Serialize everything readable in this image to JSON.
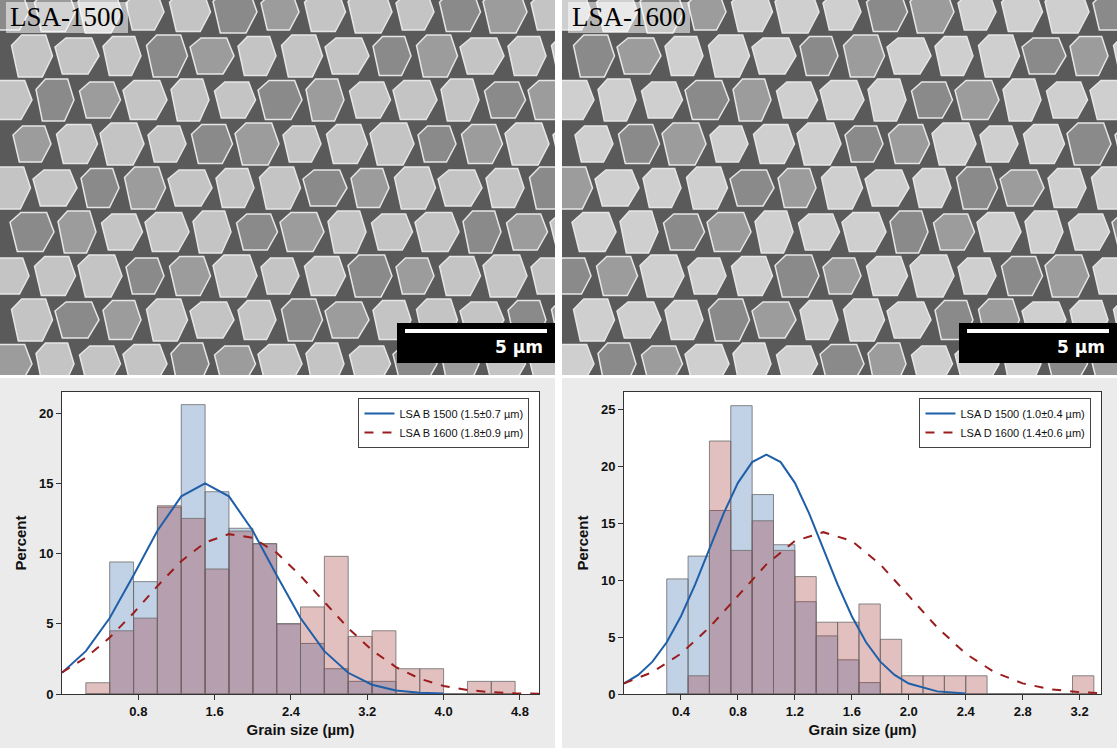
{
  "images": [
    {
      "label": "LSA-1500",
      "scale_bar": "5 µm"
    },
    {
      "label": "LSA-1600",
      "scale_bar": "5 µm"
    }
  ],
  "chart_data": [
    {
      "type": "histogram",
      "x_label": "Grain size (µm)",
      "y_label": "Percent",
      "xlim": [
        0,
        5.0
      ],
      "xticks": [
        0.8,
        1.6,
        2.4,
        3.2,
        {
          "value": 4,
          "label": "4.0"
        },
        4.8
      ],
      "ylim": [
        0,
        21.5
      ],
      "yticks": [
        0,
        5,
        10,
        15,
        20
      ],
      "grid": false,
      "legend": "top right",
      "series": [
        {
          "name": "LSA B 1500 (1.5±0.7 µm)",
          "color": "#1f5fa8",
          "line_style": "solid",
          "bins": [
            0.25,
            0.5,
            0.75,
            1.0,
            1.25,
            1.5,
            1.75,
            2.0,
            2.25,
            2.5,
            2.75,
            3.0,
            3.25,
            3.5,
            3.75,
            4.0,
            4.25,
            4.5,
            4.75
          ],
          "counts": [
            0,
            9.4,
            8.0,
            13.3,
            20.6,
            14.4,
            11.8,
            10.7,
            5.0,
            3.6,
            1.8,
            0.9,
            0.9,
            0,
            0,
            0,
            0,
            0
          ],
          "curve": {
            "x": [
              0,
              0.25,
              0.5,
              0.75,
              1.0,
              1.25,
              1.5,
              1.75,
              2.0,
              2.25,
              2.5,
              2.75,
              3.0,
              3.25,
              3.5,
              3.75,
              4.0
            ],
            "y": [
              1.51,
              3.05,
              5.41,
              8.45,
              11.62,
              14.07,
              15,
              14.07,
              11.62,
              8.45,
              5.41,
              3.05,
              1.51,
              0.66,
              0.25,
              0.09,
              0.03
            ]
          }
        },
        {
          "name": "LSA B 1600 (1.8±0.9 µm)",
          "color": "#9b1c1c",
          "line_style": "dashed",
          "bins": [
            0.25,
            0.5,
            0.75,
            1.0,
            1.25,
            1.5,
            1.75,
            2.0,
            2.25,
            2.5,
            2.75,
            3.0,
            3.25,
            3.5,
            3.75,
            4.0,
            4.25,
            4.5,
            4.75
          ],
          "counts": [
            0.8,
            4.5,
            5.4,
            13.4,
            12.5,
            8.9,
            11.6,
            10.7,
            5.0,
            6.2,
            9.8,
            4.1,
            4.5,
            1.8,
            1.8,
            0,
            0.9,
            0.9
          ],
          "curve": {
            "x": [
              0,
              0.25,
              0.5,
              0.75,
              1.0,
              1.25,
              1.5,
              1.75,
              2.0,
              2.25,
              2.5,
              2.75,
              3.0,
              3.25,
              3.5,
              3.75,
              4.0,
              4.25,
              4.5,
              4.75,
              5.0
            ],
            "y": [
              1.54,
              2.59,
              4.02,
              5.77,
              7.68,
              9.46,
              10.78,
              11.38,
              11.12,
              10.06,
              8.42,
              6.53,
              4.69,
              3.11,
              1.92,
              1.09,
              0.57,
              0.28,
              0.13,
              0.05,
              0.02
            ]
          }
        }
      ]
    },
    {
      "type": "histogram",
      "x_label": "Grain size (µm)",
      "y_label": "Percent",
      "xlim": [
        0,
        3.35
      ],
      "xticks": [
        0.4,
        0.8,
        1.2,
        1.6,
        {
          "value": 2,
          "label": "2.0"
        },
        2.4,
        2.8,
        3.2
      ],
      "ylim": [
        0,
        26.5
      ],
      "yticks": [
        0,
        5,
        10,
        15,
        20,
        25
      ],
      "grid": false,
      "legend": "top right",
      "series": [
        {
          "name": "LSA D 1500 (1.0±0.4 µm)",
          "color": "#1f5fa8",
          "line_style": "solid",
          "bins": [
            0.3,
            0.45,
            0.6,
            0.75,
            0.9,
            1.05,
            1.2,
            1.35,
            1.5,
            1.65,
            1.8,
            1.95,
            2.1,
            2.25,
            2.4,
            2.55,
            2.7,
            2.85,
            3.0,
            3.15,
            3.3
          ],
          "counts": [
            10.1,
            12.1,
            16.1,
            25.3,
            17.5,
            13.1,
            8.1,
            5.1,
            3.0,
            1.0,
            0,
            0,
            0,
            0,
            0,
            0,
            0,
            0,
            0,
            0
          ],
          "curve": {
            "x": [
              0,
              0.1,
              0.2,
              0.3,
              0.4,
              0.5,
              0.6,
              0.7,
              0.8,
              0.9,
              1.0,
              1.1,
              1.2,
              1.3,
              1.4,
              1.5,
              1.6,
              1.7,
              1.8,
              1.9,
              2.0,
              2.2,
              2.4
            ],
            "y": [
              0.92,
              1.67,
              2.84,
              4.54,
              6.82,
              9.61,
              12.74,
              15.85,
              18.53,
              20.35,
              21,
              20.35,
              18.53,
              15.85,
              12.74,
              9.61,
              6.82,
              4.54,
              2.84,
              1.67,
              0.92,
              0.23,
              0.05
            ]
          }
        },
        {
          "name": "LSA D 1600 (1.4±0.6 µm)",
          "color": "#9b1c1c",
          "line_style": "dashed",
          "bins": [
            0.3,
            0.45,
            0.6,
            0.75,
            0.9,
            1.05,
            1.2,
            1.35,
            1.5,
            1.65,
            1.8,
            1.95,
            2.1,
            2.25,
            2.4,
            2.55,
            2.7,
            2.85,
            3.0,
            3.15,
            3.3
          ],
          "counts": [
            0,
            1.6,
            22.2,
            12.6,
            15.2,
            12.6,
            10.3,
            6.3,
            6.3,
            7.9,
            4.8,
            1.6,
            1.6,
            1.6,
            1.6,
            0,
            0,
            0,
            0,
            1.6
          ],
          "curve": {
            "x": [
              0,
              0.2,
              0.4,
              0.6,
              0.8,
              1.0,
              1.2,
              1.4,
              1.6,
              1.8,
              2.0,
              2.2,
              2.4,
              2.6,
              2.8,
              3.0,
              3.2,
              3.35
            ],
            "y": [
              0.93,
              1.92,
              3.54,
              5.84,
              8.61,
              11.37,
              13.43,
              14.2,
              13.43,
              11.37,
              8.61,
              5.84,
              3.54,
              1.92,
              0.93,
              0.41,
              0.16,
              0.07
            ]
          }
        }
      ]
    }
  ]
}
